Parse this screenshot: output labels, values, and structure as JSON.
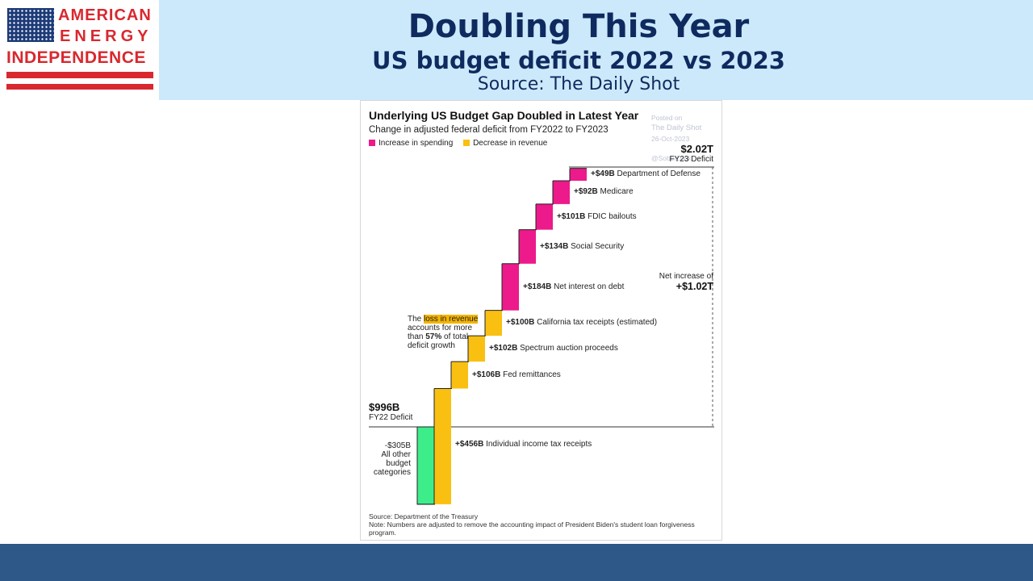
{
  "header": {
    "title": "Doubling This Year",
    "subtitle": "US budget deficit 2022 vs 2023",
    "source": "Source: The Daily Shot"
  },
  "logo": {
    "line1": "AMERICAN",
    "line2": "ENERGY",
    "line3": "INDEPENDENCE",
    "colors": {
      "red": "#d9282f",
      "blue": "#1d3b78"
    }
  },
  "colors": {
    "header_band": "#cce9fb",
    "title_text": "#0f2a5e",
    "bottom_bar": "#2d5887",
    "spending": "#ec1a8a",
    "revenue": "#f9c012",
    "other": "#3ded8a"
  },
  "chart_data": {
    "type": "waterfall",
    "title": "Underlying US Budget Gap Doubled in Latest Year",
    "subtitle": "Change in adjusted federal deficit from FY2022 to FY2023",
    "legend": [
      {
        "label": "Increase in spending",
        "color": "#ec1a8a"
      },
      {
        "label": "Decrease in revenue",
        "color": "#f9c012"
      }
    ],
    "unit": "US$ billions",
    "start": {
      "value": 996,
      "label": "$996B",
      "sublabel": "FY22 Deficit"
    },
    "end": {
      "value": 2020,
      "label": "$2.02T",
      "sublabel": "FY23 Deficit"
    },
    "net_increase": {
      "label": "Net increase of",
      "value_label": "+$1.02T"
    },
    "steps": [
      {
        "name": "All other budget categories",
        "value": -305,
        "kind": "other",
        "label": "-$305B",
        "text": "All other budget categories"
      },
      {
        "name": "Individual income tax receipts",
        "value": 456,
        "kind": "revenue",
        "label": "+$456B",
        "text": "Individual income tax receipts"
      },
      {
        "name": "Fed remittances",
        "value": 106,
        "kind": "revenue",
        "label": "+$106B",
        "text": "Fed remittances"
      },
      {
        "name": "Spectrum auction proceeds",
        "value": 102,
        "kind": "revenue",
        "label": "+$102B",
        "text": "Spectrum auction proceeds"
      },
      {
        "name": "California tax receipts (estimated)",
        "value": 100,
        "kind": "revenue",
        "label": "+$100B",
        "text": "California tax receipts (estimated)"
      },
      {
        "name": "Net interest on debt",
        "value": 184,
        "kind": "spending",
        "label": "+$184B",
        "text": "Net interest on debt"
      },
      {
        "name": "Social Security",
        "value": 134,
        "kind": "spending",
        "label": "+$134B",
        "text": "Social Security"
      },
      {
        "name": "FDIC bailouts",
        "value": 101,
        "kind": "spending",
        "label": "+$101B",
        "text": "FDIC bailouts"
      },
      {
        "name": "Medicare",
        "value": 92,
        "kind": "spending",
        "label": "+$92B",
        "text": "Medicare"
      },
      {
        "name": "Department of Defense",
        "value": 49,
        "kind": "spending",
        "label": "+$49B",
        "text": "Department of Defense"
      }
    ],
    "callout": {
      "pre": "The",
      "highlight": "loss in revenue",
      "mid": "accounts for more than",
      "pct": "57%",
      "post": "of total deficit growth"
    },
    "watermark": [
      "Posted on",
      "The Daily Shot",
      "26-Oct-2023",
      "@SoberLook"
    ],
    "footer_source": "Source: Department of the Treasury",
    "footer_note": "Note: Numbers are adjusted to remove the accounting impact of President Biden's student loan forgiveness program."
  }
}
